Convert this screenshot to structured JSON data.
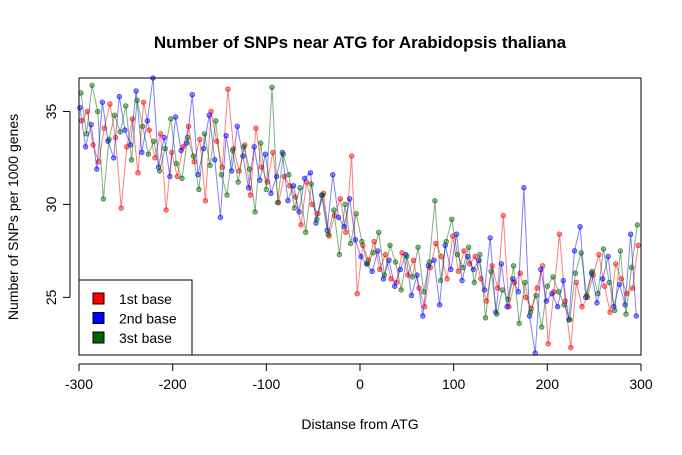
{
  "chart_data": {
    "type": "line",
    "title": "Number of SNPs near ATG for Arabidopsis thaliana",
    "xlabel": "Distanse from ATG",
    "ylabel": "Number of SNPs per 1000 genes",
    "xlim": [
      -300,
      300
    ],
    "ylim": [
      21.9,
      36.8
    ],
    "x_ticks": [
      -300,
      -200,
      -100,
      0,
      100,
      200,
      300
    ],
    "y_ticks": [
      25,
      30,
      35
    ],
    "legend": {
      "placement": "bottom-left"
    },
    "series": [
      {
        "name": "1st base",
        "color": "#ff0000",
        "x": [
          -297,
          -291,
          -285,
          -279,
          -273,
          -267,
          -261,
          -255,
          -249,
          -243,
          -237,
          -231,
          -225,
          -219,
          -213,
          -207,
          -201,
          -195,
          -189,
          -183,
          -177,
          -171,
          -165,
          -159,
          -153,
          -147,
          -141,
          -135,
          -129,
          -123,
          -117,
          -111,
          -105,
          -99,
          -93,
          -87,
          -81,
          -75,
          -69,
          -63,
          -57,
          -51,
          -45,
          -39,
          -33,
          -27,
          -21,
          -15,
          -9,
          -3,
          3,
          9,
          15,
          21,
          27,
          33,
          39,
          45,
          51,
          57,
          63,
          69,
          75,
          81,
          87,
          93,
          99,
          105,
          111,
          117,
          123,
          129,
          135,
          141,
          147,
          153,
          159,
          165,
          171,
          177,
          183,
          189,
          195,
          201,
          207,
          213,
          219,
          225,
          231,
          237,
          243,
          249,
          255,
          261,
          267,
          273,
          279,
          285,
          291,
          297
        ],
        "values": [
          34.5,
          35.0,
          33.2,
          32.3,
          34.1,
          35.4,
          33.6,
          29.8,
          33.1,
          34.6,
          31.7,
          35.5,
          34.0,
          32.5,
          33.8,
          29.7,
          32.8,
          31.5,
          33.1,
          34.2,
          32.3,
          33.5,
          30.2,
          35.0,
          33.4,
          32.0,
          36.2,
          33.0,
          31.8,
          33.2,
          30.5,
          34.1,
          32.0,
          31.2,
          32.8,
          30.1,
          31.5,
          31.0,
          30.4,
          28.9,
          31.2,
          30.0,
          29.5,
          30.6,
          28.3,
          29.4,
          30.3,
          28.5,
          32.6,
          25.2,
          27.8,
          27.0,
          28.0,
          26.5,
          27.3,
          26.0,
          25.8,
          27.4,
          26.2,
          27.0,
          25.5,
          24.5,
          26.6,
          27.9,
          27.2,
          26.0,
          28.3,
          26.4,
          27.5,
          26.8,
          27.2,
          26.0,
          24.8,
          26.7,
          25.5,
          29.4,
          24.5,
          25.8,
          26.3,
          25.0,
          24.4,
          25.5,
          26.7,
          22.5,
          25.3,
          28.4,
          24.8,
          22.3,
          25.8,
          24.5,
          25.0,
          26.2,
          27.3,
          25.6,
          24.2,
          26.8,
          26.0,
          25.2,
          25.5,
          27.8
        ]
      },
      {
        "name": "2nd base",
        "color": "#0000ff",
        "x": [
          -299,
          -293,
          -287,
          -281,
          -275,
          -269,
          -263,
          -257,
          -251,
          -245,
          -239,
          -233,
          -227,
          -221,
          -215,
          -209,
          -203,
          -197,
          -191,
          -185,
          -179,
          -173,
          -167,
          -161,
          -155,
          -149,
          -143,
          -137,
          -131,
          -125,
          -119,
          -113,
          -107,
          -101,
          -95,
          -89,
          -83,
          -77,
          -71,
          -65,
          -59,
          -53,
          -47,
          -41,
          -35,
          -29,
          -23,
          -17,
          -11,
          -5,
          1,
          7,
          13,
          19,
          25,
          31,
          37,
          43,
          49,
          55,
          61,
          67,
          73,
          79,
          85,
          91,
          97,
          103,
          109,
          115,
          121,
          127,
          133,
          139,
          145,
          151,
          157,
          163,
          169,
          175,
          181,
          187,
          193,
          199,
          205,
          211,
          217,
          223,
          229,
          235,
          241,
          247,
          253,
          259,
          265,
          271,
          277,
          283,
          289,
          295
        ],
        "values": [
          35.2,
          33.1,
          34.3,
          31.9,
          35.5,
          33.4,
          32.5,
          35.8,
          34.0,
          33.2,
          36.1,
          32.8,
          34.5,
          36.8,
          32.0,
          33.6,
          31.5,
          34.7,
          32.9,
          33.3,
          35.9,
          31.6,
          33.0,
          34.8,
          32.4,
          29.3,
          33.7,
          31.8,
          34.2,
          32.6,
          30.9,
          33.1,
          31.3,
          32.7,
          30.6,
          31.5,
          32.8,
          30.2,
          31.0,
          29.6,
          31.4,
          31.7,
          29.0,
          30.5,
          28.6,
          31.6,
          29.3,
          28.8,
          30.3,
          28.1,
          27.2,
          26.8,
          26.4,
          27.5,
          26.0,
          27.0,
          25.6,
          26.5,
          27.3,
          25.1,
          26.2,
          24.0,
          26.7,
          27.0,
          24.6,
          27.8,
          26.5,
          28.4,
          25.9,
          27.2,
          26.5,
          27.0,
          25.4,
          28.2,
          24.2,
          26.8,
          24.5,
          26.0,
          25.3,
          30.9,
          24.0,
          22.0,
          26.5,
          24.8,
          25.2,
          24.5,
          25.9,
          23.8,
          27.5,
          28.8,
          25.0,
          26.3,
          24.7,
          26.0,
          27.2,
          24.5,
          25.7,
          24.6,
          28.4,
          24.0
        ]
      },
      {
        "name": "3st base",
        "color": "#006400",
        "x": [
          -298,
          -292,
          -286,
          -280,
          -274,
          -268,
          -262,
          -256,
          -250,
          -244,
          -238,
          -232,
          -226,
          -220,
          -214,
          -208,
          -202,
          -196,
          -190,
          -184,
          -178,
          -172,
          -166,
          -160,
          -154,
          -148,
          -142,
          -136,
          -130,
          -124,
          -118,
          -112,
          -106,
          -100,
          -94,
          -88,
          -82,
          -76,
          -70,
          -64,
          -58,
          -52,
          -46,
          -40,
          -34,
          -28,
          -22,
          -16,
          -10,
          -4,
          2,
          8,
          14,
          20,
          26,
          32,
          38,
          44,
          50,
          56,
          62,
          68,
          74,
          80,
          86,
          92,
          98,
          104,
          110,
          116,
          122,
          128,
          134,
          140,
          146,
          152,
          158,
          164,
          170,
          176,
          182,
          188,
          194,
          200,
          206,
          212,
          218,
          224,
          230,
          236,
          242,
          248,
          254,
          260,
          266,
          272,
          278,
          284,
          290,
          296
        ],
        "values": [
          36.0,
          33.8,
          36.4,
          35.0,
          30.3,
          33.5,
          34.8,
          33.9,
          35.3,
          32.4,
          35.6,
          34.2,
          32.7,
          33.4,
          31.8,
          33.0,
          34.6,
          32.2,
          31.4,
          33.6,
          32.6,
          30.8,
          33.8,
          32.1,
          34.5,
          31.6,
          30.5,
          32.9,
          31.2,
          33.1,
          31.9,
          29.6,
          33.3,
          30.8,
          36.3,
          30.1,
          32.7,
          31.6,
          29.8,
          30.9,
          28.5,
          31.1,
          29.2,
          30.5,
          28.4,
          29.7,
          27.3,
          30.0,
          27.9,
          29.5,
          28.0,
          26.8,
          27.4,
          28.5,
          26.2,
          27.8,
          26.9,
          25.4,
          27.2,
          26.1,
          27.7,
          25.3,
          26.9,
          30.2,
          25.9,
          28.0,
          29.2,
          27.3,
          26.6,
          27.7,
          25.8,
          27.3,
          23.9,
          26.4,
          24.1,
          25.4,
          24.9,
          26.7,
          23.6,
          25.8,
          24.2,
          25.1,
          23.4,
          25.6,
          26.1,
          25.3,
          24.6,
          23.8,
          26.3,
          27.4,
          25.1,
          26.4,
          25.2,
          27.6,
          25.8,
          24.3,
          27.5,
          24.1,
          26.6,
          28.9
        ]
      }
    ]
  }
}
